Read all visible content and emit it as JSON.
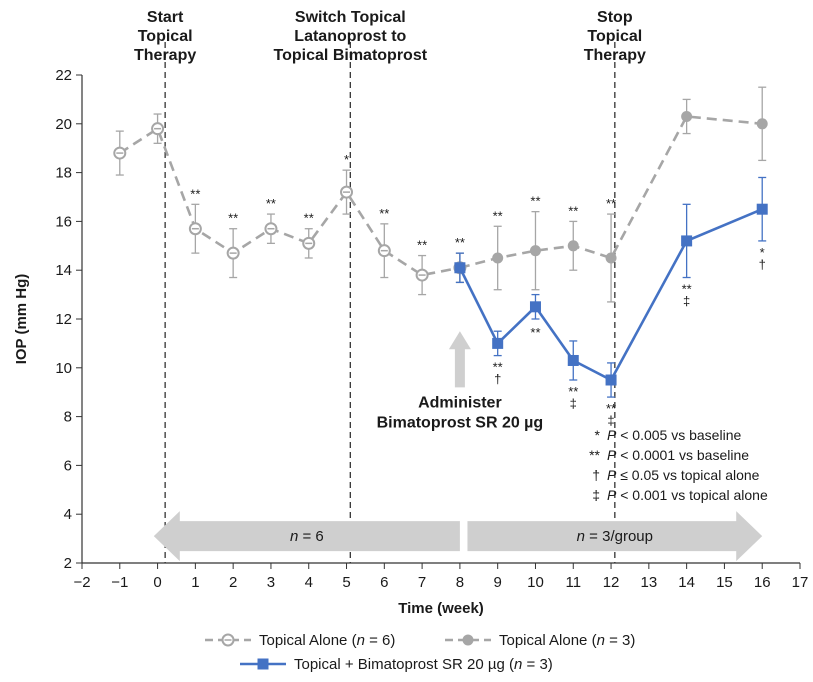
{
  "chart_data": {
    "type": "line",
    "xlabel": "Time (week)",
    "ylabel": "IOP (mm Hg)",
    "xlim": [
      -2,
      17
    ],
    "ylim": [
      2,
      22
    ],
    "x_ticks": [
      "−2",
      "−1",
      "0",
      "1",
      "2",
      "3",
      "4",
      "5",
      "6",
      "7",
      "8",
      "9",
      "10",
      "11",
      "12",
      "13",
      "14",
      "15",
      "16",
      "17"
    ],
    "x_tick_values": [
      -2,
      -1,
      0,
      1,
      2,
      3,
      4,
      5,
      6,
      7,
      8,
      9,
      10,
      11,
      12,
      13,
      14,
      15,
      16,
      17
    ],
    "y_ticks": [
      "2",
      "4",
      "6",
      "8",
      "10",
      "12",
      "14",
      "16",
      "18",
      "20",
      "22"
    ],
    "y_tick_values": [
      2,
      4,
      6,
      8,
      10,
      12,
      14,
      16,
      18,
      20,
      22
    ],
    "grid": false,
    "vlines": [
      {
        "x": 0.2,
        "lines": [
          "Start",
          "Topical",
          "Therapy"
        ]
      },
      {
        "x": 5.1,
        "lines": [
          "Switch Topical",
          "Latanoprost to",
          "Topical Bimatoprost"
        ]
      },
      {
        "x": 12.1,
        "lines": [
          "Stop",
          "Topical",
          "Therapy"
        ]
      }
    ],
    "series": [
      {
        "name": "Topical Alone (n = 6)",
        "color": "#a6a6a6",
        "marker": "open-circle",
        "dashed": true,
        "points": [
          {
            "x": -1,
            "y": 18.8,
            "err": 0.9
          },
          {
            "x": 0,
            "y": 19.8,
            "err": 0.6
          },
          {
            "x": 1,
            "y": 15.7,
            "err": 1.0,
            "ann": [
              "**"
            ]
          },
          {
            "x": 2,
            "y": 14.7,
            "err": 1.0,
            "ann": [
              "**"
            ]
          },
          {
            "x": 3,
            "y": 15.7,
            "err": 0.6,
            "ann": [
              "**"
            ]
          },
          {
            "x": 4,
            "y": 15.1,
            "err": 0.6,
            "ann": [
              "**"
            ]
          },
          {
            "x": 5,
            "y": 17.2,
            "err": 0.9,
            "ann": [
              "*"
            ]
          },
          {
            "x": 6,
            "y": 14.8,
            "err": 1.1,
            "ann": [
              "**"
            ]
          },
          {
            "x": 7,
            "y": 13.8,
            "err": 0.8,
            "ann": [
              "**"
            ]
          },
          {
            "x": 8,
            "y": 14.1,
            "err": 0.6,
            "ann": [
              "**"
            ]
          }
        ]
      },
      {
        "name": "Topical Alone (n = 3)",
        "color": "#a6a6a6",
        "marker": "filled-circle",
        "dashed": true,
        "points": [
          {
            "x": 8,
            "y": 14.1,
            "err": 0.6
          },
          {
            "x": 9,
            "y": 14.5,
            "err": 1.3,
            "ann": [
              "**"
            ]
          },
          {
            "x": 10,
            "y": 14.8,
            "err": 1.6,
            "ann": [
              "**"
            ]
          },
          {
            "x": 11,
            "y": 15.0,
            "err": 1.0,
            "ann": [
              "**"
            ]
          },
          {
            "x": 12,
            "y": 14.5,
            "err": 1.8,
            "ann": [
              "**"
            ]
          },
          {
            "x": 14,
            "y": 20.3,
            "err": 0.7
          },
          {
            "x": 16,
            "y": 20.0,
            "err": 1.5
          }
        ]
      },
      {
        "name": "Topical + Bimatoprost SR 20 µg (n = 3)",
        "color": "#4472c4",
        "marker": "filled-square",
        "dashed": false,
        "points": [
          {
            "x": 8,
            "y": 14.1,
            "err": 0.6
          },
          {
            "x": 9,
            "y": 11.0,
            "err": 0.5,
            "ann": [
              "**",
              "†"
            ]
          },
          {
            "x": 10,
            "y": 12.5,
            "err": 0.5,
            "ann_above": [
              "**"
            ]
          },
          {
            "x": 11,
            "y": 10.3,
            "err": 0.8,
            "ann": [
              "**",
              "‡"
            ]
          },
          {
            "x": 12,
            "y": 9.5,
            "err": 0.7,
            "ann": [
              "**",
              "‡"
            ]
          },
          {
            "x": 14,
            "y": 15.2,
            "err": 1.5,
            "ann": [
              "**",
              "‡"
            ]
          },
          {
            "x": 16,
            "y": 16.5,
            "err": 1.3,
            "ann": [
              "*",
              "†"
            ]
          }
        ]
      }
    ],
    "arrows": [
      {
        "from": -0.1,
        "to": 8.0,
        "y": 3.1,
        "label": "n = 6"
      },
      {
        "from": 8.2,
        "to": 16.0,
        "y": 3.1,
        "label": "n = 3/group"
      }
    ],
    "annotation": {
      "x": 8,
      "y_from": 11.5,
      "y_to": 9.2,
      "lines": [
        "Administer",
        "Bimatoprost SR 20 µg"
      ]
    },
    "footnotes": [
      {
        "sym": "*",
        "text": "P < 0.005 vs baseline"
      },
      {
        "sym": "**",
        "text": "P < 0.0001 vs baseline"
      },
      {
        "sym": "†",
        "text": "P ≤ 0.05 vs topical alone"
      },
      {
        "sym": "‡",
        "text": "P < 0.001 vs topical alone"
      }
    ],
    "legend": [
      {
        "label": "Topical Alone (n = 6)",
        "marker": "open-circle",
        "dashed": true,
        "color": "#a6a6a6"
      },
      {
        "label": "Topical Alone (n = 3)",
        "marker": "filled-circle",
        "dashed": true,
        "color": "#a6a6a6"
      },
      {
        "label": "Topical + Bimatoprost SR 20 µg (n = 3)",
        "marker": "filled-square",
        "dashed": false,
        "color": "#4472c4"
      }
    ],
    "legend_position": "bottom"
  }
}
